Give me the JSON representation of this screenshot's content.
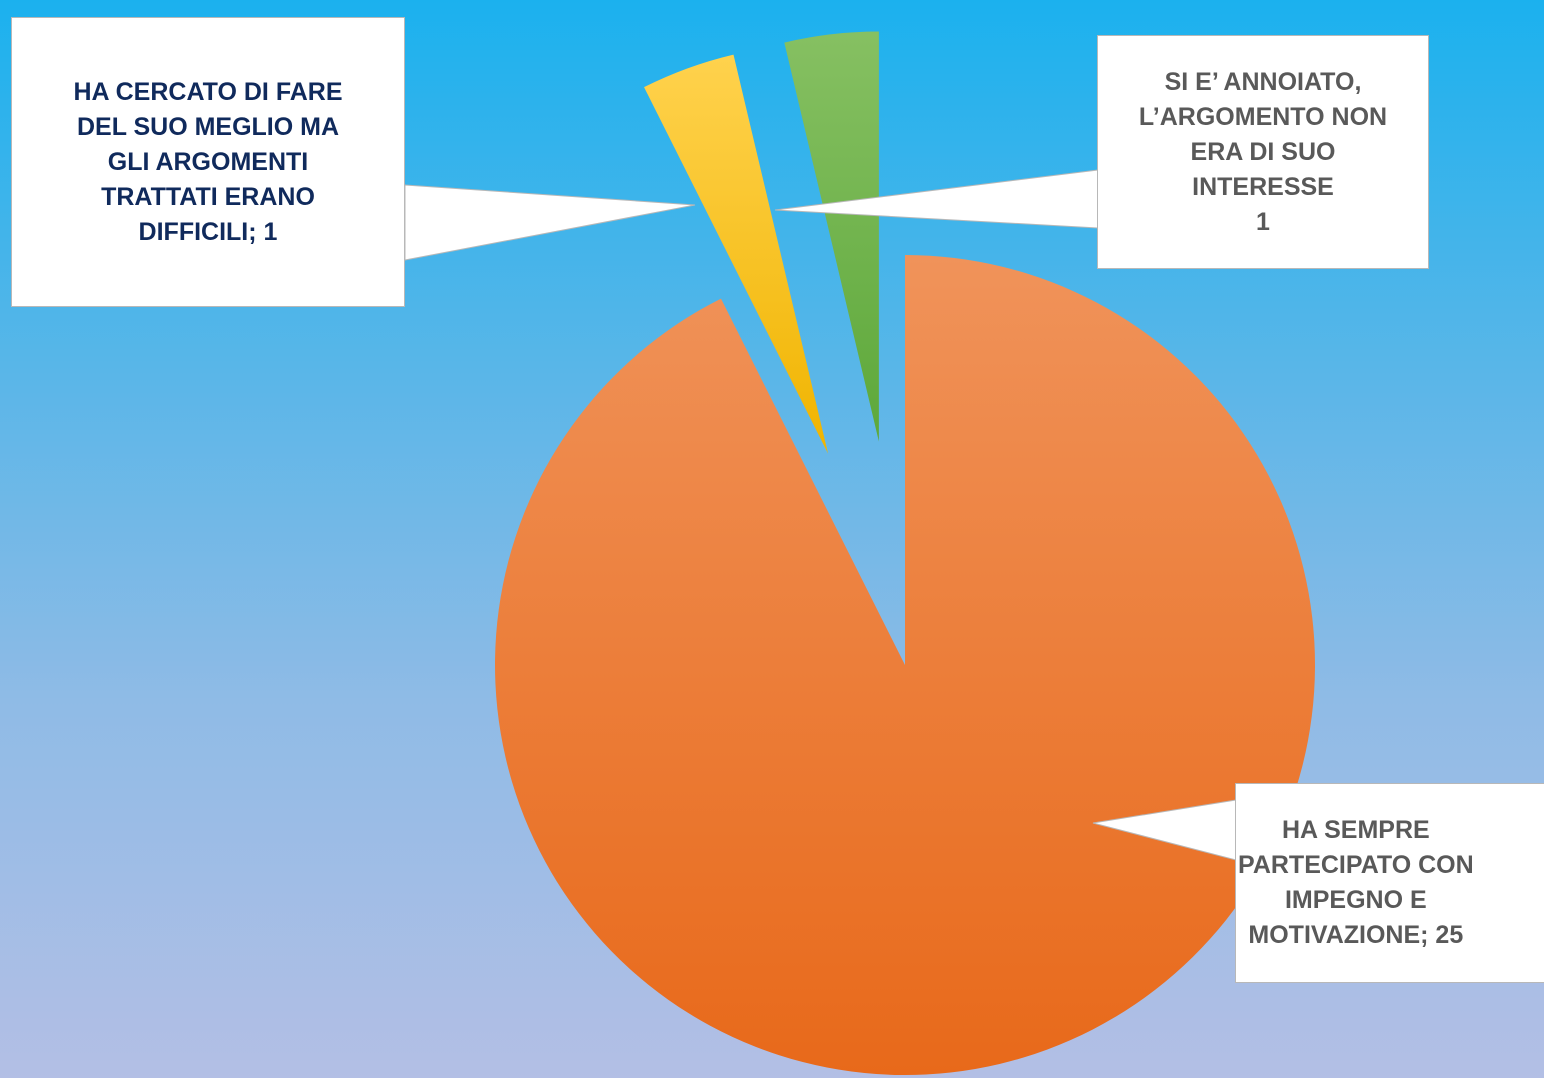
{
  "chart_data": {
    "type": "pie",
    "slices": [
      {
        "label_lines": [
          "HA SEMPRE",
          "PARTECIPATO CON",
          "IMPEGNO E",
          "MOTIVAZIONE; 25"
        ],
        "value": 25,
        "color_top": "#f0935a",
        "color_bottom": "#e8691a"
      },
      {
        "label_lines": [
          "HA CERCATO DI FARE",
          "DEL SUO MEGLIO MA",
          "GLI ARGOMENTI",
          "TRATTATI ERANO",
          "DIFFICILI; 1"
        ],
        "value": 1,
        "color_top": "#ffd24d",
        "color_bottom": "#f0b400"
      },
      {
        "label_lines": [
          "SI E’ ANNOIATO,",
          "L’ARGOMENTO NON",
          "ERA DI SUO",
          "INTERESSE",
          "1"
        ],
        "value": 1,
        "color_top": "#86c062",
        "color_bottom": "#5da83a"
      }
    ],
    "legend": "none"
  }
}
